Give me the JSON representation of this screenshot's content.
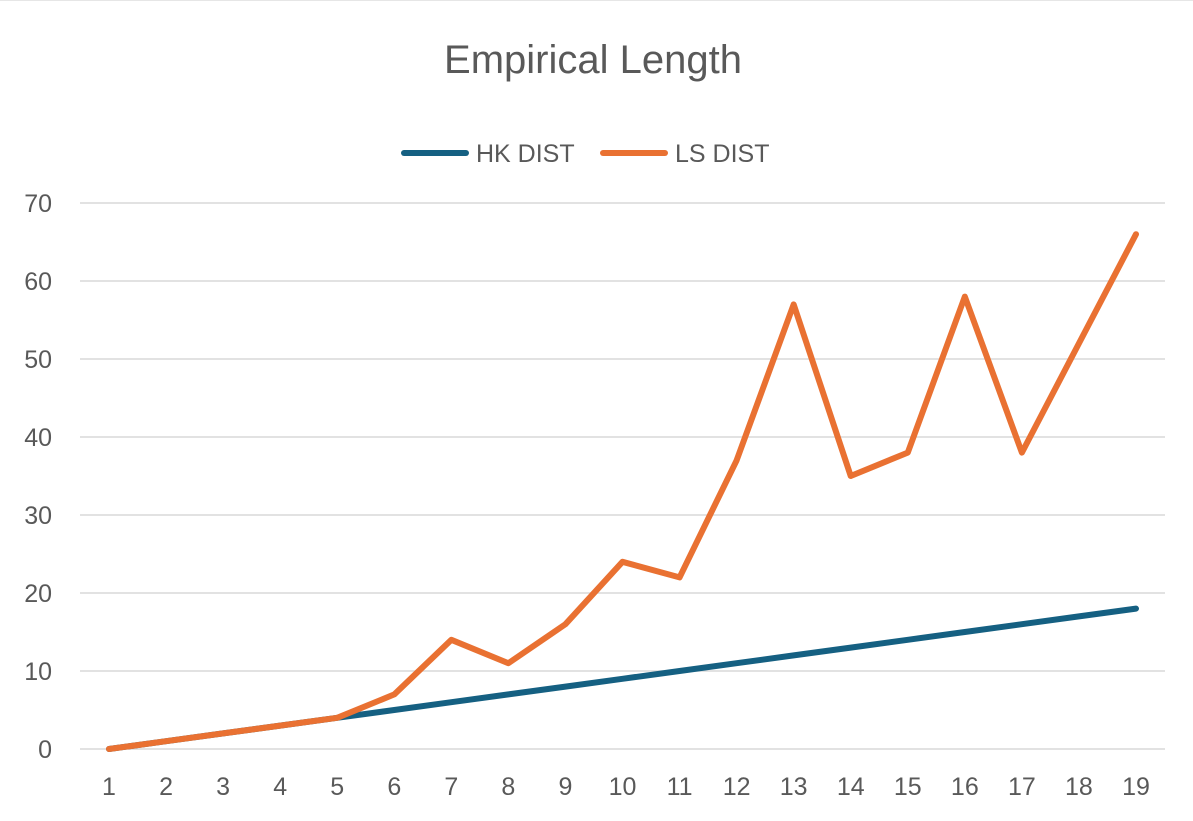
{
  "chart_data": {
    "type": "line",
    "title": "Empirical Length",
    "xlabel": "",
    "ylabel": "",
    "categories": [
      "1",
      "2",
      "3",
      "4",
      "5",
      "6",
      "7",
      "8",
      "9",
      "10",
      "11",
      "12",
      "13",
      "14",
      "15",
      "16",
      "17",
      "18",
      "19"
    ],
    "series": [
      {
        "name": "HK DIST",
        "color": "#156082",
        "values": [
          0,
          1,
          2,
          3,
          4,
          5,
          6,
          7,
          8,
          9,
          10,
          11,
          12,
          13,
          14,
          15,
          16,
          17,
          18
        ]
      },
      {
        "name": "LS DIST",
        "color": "#E97132",
        "values": [
          0,
          1,
          2,
          3,
          4,
          7,
          14,
          11,
          16,
          24,
          22,
          37,
          57,
          35,
          38,
          58,
          38,
          52,
          66
        ]
      }
    ],
    "ylim": [
      0,
      70
    ],
    "yticks": [
      0,
      10,
      20,
      30,
      40,
      50,
      60,
      70
    ],
    "grid": true,
    "legend": "top-center"
  }
}
